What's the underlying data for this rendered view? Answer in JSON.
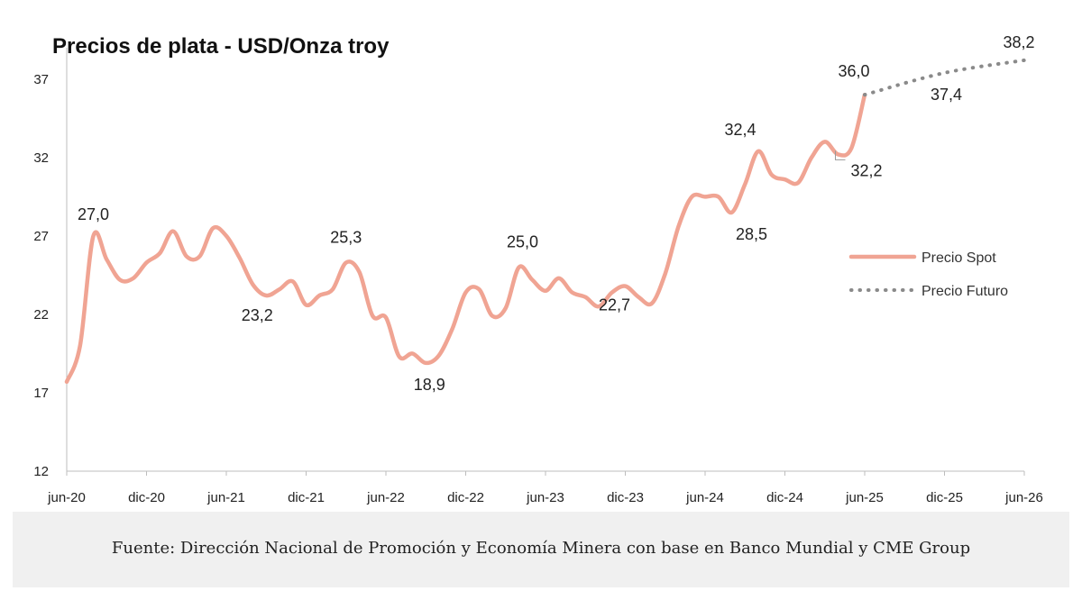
{
  "title": "Precios de plata - USD/Onza troy",
  "source": "Fuente: Dirección Nacional de Promoción y Economía Minera con base en Banco Mundial y CME Group",
  "colors": {
    "spot": "#f0a493",
    "future": "#8a8a8a",
    "axis": "#bdbdbd",
    "source_bg": "#f0f0f0"
  },
  "chart_data": {
    "type": "line",
    "title": "Precios de plata - USD/Onza troy",
    "xlabel": "",
    "ylabel": "",
    "ylim": [
      12,
      39
    ],
    "yticks": [
      12,
      17,
      22,
      27,
      32,
      37
    ],
    "xlim": [
      "jun-20",
      "jun-26"
    ],
    "xticks": [
      "jun-20",
      "dic-20",
      "jun-21",
      "dic-21",
      "jun-22",
      "dic-22",
      "jun-23",
      "dic-23",
      "jun-24",
      "dic-24",
      "jun-25",
      "dic-25",
      "jun-26"
    ],
    "grid": false,
    "legend": "right",
    "series": [
      {
        "name": "Precio Spot",
        "style": "solid",
        "x": [
          "2020-06",
          "2020-07",
          "2020-08",
          "2020-09",
          "2020-10",
          "2020-11",
          "2020-12",
          "2021-01",
          "2021-02",
          "2021-03",
          "2021-04",
          "2021-05",
          "2021-06",
          "2021-07",
          "2021-08",
          "2021-09",
          "2021-10",
          "2021-11",
          "2021-12",
          "2022-01",
          "2022-02",
          "2022-03",
          "2022-04",
          "2022-05",
          "2022-06",
          "2022-07",
          "2022-08",
          "2022-09",
          "2022-10",
          "2022-11",
          "2022-12",
          "2023-01",
          "2023-02",
          "2023-03",
          "2023-04",
          "2023-05",
          "2023-06",
          "2023-07",
          "2023-08",
          "2023-09",
          "2023-10",
          "2023-11",
          "2023-12",
          "2024-01",
          "2024-02",
          "2024-03",
          "2024-04",
          "2024-05",
          "2024-06",
          "2024-07",
          "2024-08",
          "2024-09",
          "2024-10",
          "2024-11",
          "2024-12",
          "2025-01",
          "2025-02",
          "2025-03",
          "2025-04",
          "2025-05",
          "2025-06"
        ],
        "values": [
          17.7,
          20.0,
          27.0,
          25.5,
          24.2,
          24.3,
          25.3,
          25.9,
          27.3,
          25.7,
          25.7,
          27.5,
          27.0,
          25.6,
          23.9,
          23.2,
          23.6,
          24.1,
          22.6,
          23.2,
          23.6,
          25.3,
          24.7,
          21.9,
          21.8,
          19.3,
          19.5,
          18.9,
          19.4,
          21.1,
          23.4,
          23.6,
          21.9,
          22.4,
          25.0,
          24.2,
          23.5,
          24.3,
          23.4,
          23.1,
          22.5,
          23.4,
          23.8,
          23.1,
          22.7,
          24.6,
          27.6,
          29.5,
          29.5,
          29.5,
          28.5,
          30.3,
          32.4,
          30.9,
          30.6,
          30.4,
          32.0,
          33.0,
          32.2,
          32.6,
          36.0
        ]
      },
      {
        "name": "Precio Futuro",
        "style": "dotted",
        "x": [
          "2025-06",
          "2025-12",
          "2026-06"
        ],
        "values": [
          36.0,
          37.4,
          38.2
        ]
      }
    ],
    "annotations": [
      {
        "text": "27,0",
        "x": "2020-08",
        "y": 27.0
      },
      {
        "text": "23,2",
        "x": "2021-09",
        "y": 23.2
      },
      {
        "text": "25,3",
        "x": "2022-03",
        "y": 25.3
      },
      {
        "text": "18,9",
        "x": "2022-09",
        "y": 18.9
      },
      {
        "text": "25,0",
        "x": "2023-04",
        "y": 25.0
      },
      {
        "text": "22,7",
        "x": "2024-02",
        "y": 22.7
      },
      {
        "text": "32,4",
        "x": "2024-10",
        "y": 32.4
      },
      {
        "text": "28,5",
        "x": "2024-08",
        "y": 28.5
      },
      {
        "text": "32,2",
        "x": "2025-04",
        "y": 32.2
      },
      {
        "text": "36,0",
        "x": "2025-06",
        "y": 36.0
      },
      {
        "text": "37,4",
        "x": "2025-12",
        "y": 37.4
      },
      {
        "text": "38,2",
        "x": "2026-06",
        "y": 38.2
      }
    ]
  }
}
